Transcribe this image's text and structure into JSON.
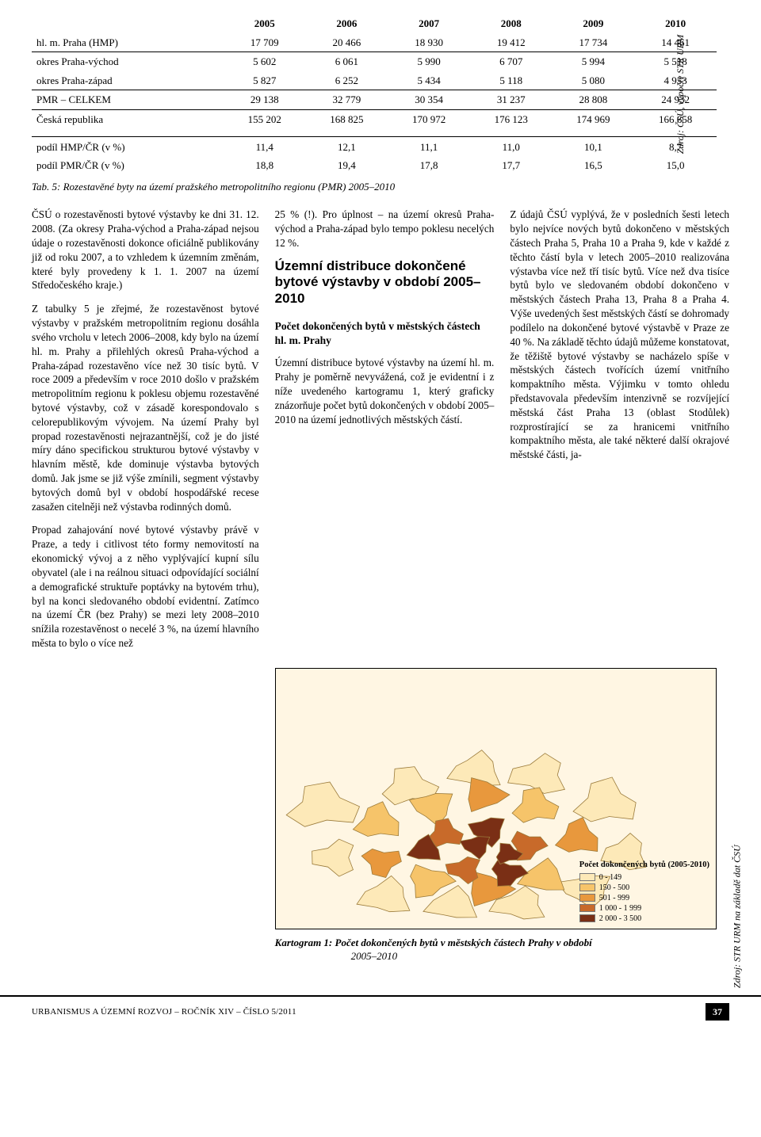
{
  "table": {
    "headers": [
      "",
      "2005",
      "2006",
      "2007",
      "2008",
      "2009",
      "2010"
    ],
    "rows": [
      {
        "label": "hl. m. Praha (HMP)",
        "vals": [
          "17 709",
          "20 466",
          "18 930",
          "19 412",
          "17 734",
          "14 461"
        ],
        "cls": ""
      },
      {
        "label": "okres Praha-východ",
        "vals": [
          "5 602",
          "6 061",
          "5 990",
          "6 707",
          "5 994",
          "5 518"
        ],
        "cls": "line-top"
      },
      {
        "label": "okres Praha-západ",
        "vals": [
          "5 827",
          "6 252",
          "5 434",
          "5 118",
          "5 080",
          "4 953"
        ],
        "cls": ""
      },
      {
        "label": "PMR – CELKEM",
        "vals": [
          "29 138",
          "32 779",
          "30 354",
          "31 237",
          "28 808",
          "24 932"
        ],
        "cls": "line-top"
      },
      {
        "label": "Česká republika",
        "vals": [
          "155 202",
          "168 825",
          "170 972",
          "176 123",
          "174 969",
          "166 658"
        ],
        "cls": "line-top"
      },
      {
        "label": "podíl HMP/ČR (v %)",
        "vals": [
          "11,4",
          "12,1",
          "11,1",
          "11,0",
          "10,1",
          "8,7"
        ],
        "cls": "wide-top"
      },
      {
        "label": "podíl PMR/ČR (v %)",
        "vals": [
          "18,8",
          "19,4",
          "17,8",
          "17,7",
          "16,5",
          "15,0"
        ],
        "cls": ""
      }
    ],
    "source": "Zdroj: ČSÚ, výpočty STR URM",
    "caption": "Tab. 5: Rozestavěné byty na území pražského metropolitního regionu (PMR) 2005–2010"
  },
  "col1": {
    "p1": "ČSÚ o rozestavěnosti bytové výstavby ke dni 31. 12. 2008. (Za okresy Praha-východ a Praha-západ nejsou údaje o rozestavěnosti dokonce oficiálně publikovány již od roku 2007, a to vzhledem k územním změnám, které byly provedeny k 1. 1. 2007 na území Středočeského kraje.)",
    "p2": "Z tabulky 5 je zřejmé, že rozestavěnost bytové výstavby v pražském metropolitním regionu dosáhla svého vrcholu v letech 2006–2008, kdy bylo na území hl. m. Prahy a přilehlých okresů Praha-východ a Praha-západ rozestavěno více než 30 tisíc bytů. V roce 2009 a především v roce 2010 došlo v pražském metropolitním regionu k poklesu objemu rozestavěné bytové výstavby, což v zásadě korespondovalo s celorepublikovým vývojem. Na území Prahy byl propad rozestavěnosti nejrazantnější, což je do jisté míry dáno specifickou strukturou bytové výstavby v hlavním městě, kde dominuje výstavba bytových domů. Jak jsme se již výše zmínili, segment výstavby bytových domů byl v období hospodářské recese zasažen citelněji než výstavba rodinných domů.",
    "p3": "Propad zahajování nové bytové výstavby právě v Praze, a tedy i citlivost této formy nemovitostí na ekonomický vývoj a z něho vyplývající kupní sílu obyvatel (ale i na reálnou situaci odpovídající sociální a demografické struktuře poptávky na bytovém trhu), byl na konci sledovaného období evidentní. Zatímco na území ČR (bez Prahy) se mezi lety 2008–2010 snížila rozestavěnost o necelé 3 %, na území hlavního města to bylo o více než"
  },
  "col2": {
    "p1": "25 % (!). Pro úplnost – na území okresů Praha-východ a Praha-západ bylo tempo poklesu necelých 12 %.",
    "sectionTitle": "Územní distribuce dokončené bytové výstavby v období 2005–2010",
    "sub": "Počet dokončených bytů v městských částech hl. m. Prahy",
    "p2": "Územní distribuce bytové výstavby na území hl. m. Prahy je poměrně nevyvážená, což je evidentní i z níže uvedeného kartogramu 1, který graficky znázorňuje počet bytů dokončených v období 2005–2010 na území jednotlivých městských částí."
  },
  "col3": {
    "p1": "Z údajů ČSÚ vyplývá, že v posledních šesti letech bylo nejvíce nových bytů dokončeno v městských částech Praha 5, Praha 10 a Praha 9, kde v každé z těchto částí byla v letech 2005–2010 realizována výstavba více než tří tisíc bytů. Více než dva tisíce bytů bylo ve sledovaném období dokončeno v městských částech Praha 13, Praha 8 a Praha 4. Výše uvedených šest městských částí se dohromady podílelo na dokončené bytové výstavbě v Praze ze 40 %. Na základě těchto údajů můžeme konstatovat, že těžiště bytové výstavby se nacházelo spíše v městských částech tvořících území vnitřního kompaktního města. Výjimku v tomto ohledu představovala především intenzivně se rozvíjející městská část Praha 13 (oblast Stodůlek) rozprostírající se za hranicemi vnitřního kompaktního města, ale také některé další okrajové městské části, ja-"
  },
  "map": {
    "legendTitle": "Počet dokončených bytů (2005-2010)",
    "legend": [
      {
        "label": "0 - 149",
        "color": "#fde9b8"
      },
      {
        "label": "150 - 500",
        "color": "#f6c46a"
      },
      {
        "label": "501 - 999",
        "color": "#e8983d"
      },
      {
        "label": "1 000 - 1 999",
        "color": "#c86a2a"
      },
      {
        "label": "2 000 - 3 500",
        "color": "#7a2f15"
      }
    ],
    "bg": "#fff6e3",
    "border": "#9a7a3a",
    "source": "Zdroj: STR URM na základě dat ČSÚ",
    "caption_bold": "Kartogram 1: Počet dokončených bytů v městských částech Prahy v období",
    "caption_rest": "2005–2010"
  },
  "footer": {
    "left": "URBANISMUS A ÚZEMNÍ ROZVOJ – ROČNÍK XIV – ČÍSLO 5/2011",
    "page": "37"
  }
}
